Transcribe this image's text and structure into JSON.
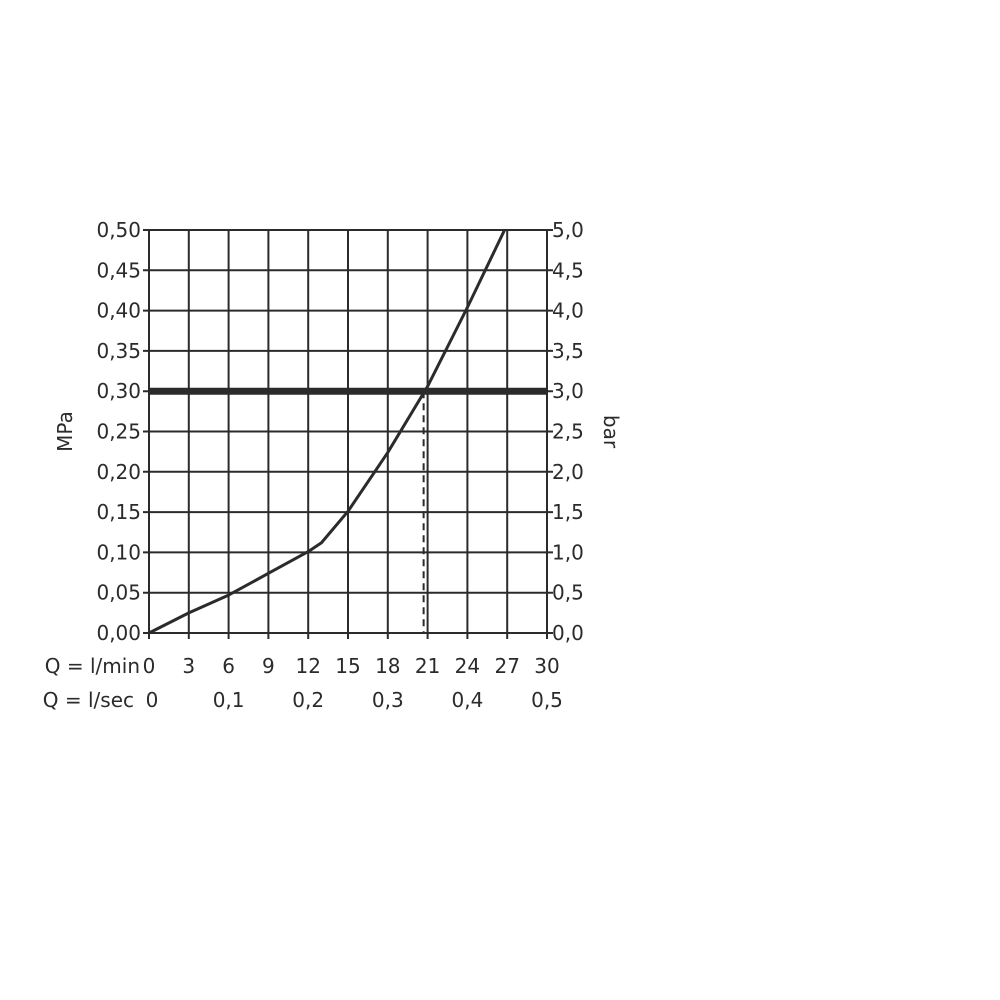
{
  "chart_data": {
    "type": "line",
    "title": "",
    "ylabel_left": "MPa",
    "ylabel_right": "bar",
    "ylim": [
      0,
      0.5
    ],
    "xlim": [
      0,
      30
    ],
    "grid": true,
    "x_row1_label": "Q = l/min",
    "x_row1_ticks": [
      "0",
      "3",
      "6",
      "9",
      "12",
      "15",
      "18",
      "21",
      "24",
      "27",
      "30"
    ],
    "x_row2_label": "Q = l/sec",
    "x_row2_ticks": [
      {
        "value": 0,
        "label": "0"
      },
      {
        "value": 6,
        "label": "0,1"
      },
      {
        "value": 12,
        "label": "0,2"
      },
      {
        "value": 18,
        "label": "0,3"
      },
      {
        "value": 24,
        "label": "0,4"
      },
      {
        "value": 30,
        "label": "0,5"
      }
    ],
    "y_left_ticks": [
      "0,00",
      "0,05",
      "0,10",
      "0,15",
      "0,20",
      "0,25",
      "0,30",
      "0,35",
      "0,40",
      "0,45",
      "0,50"
    ],
    "y_right_ticks": [
      "0,0",
      "0,5",
      "1,0",
      "1,5",
      "2,0",
      "2,5",
      "3,0",
      "3,5",
      "4,0",
      "4,5",
      "5,0"
    ],
    "series": [
      {
        "x": [
          0,
          3,
          6,
          9,
          12,
          13,
          15,
          18,
          21,
          24,
          26.8
        ],
        "y": [
          0,
          0.025,
          0.047,
          0.074,
          0.101,
          0.112,
          0.151,
          0.224,
          0.306,
          0.404,
          0.5
        ]
      }
    ],
    "reference_line_y": 0.3,
    "reference_dashed_x": 20.7,
    "color": "#2b2b2b"
  }
}
